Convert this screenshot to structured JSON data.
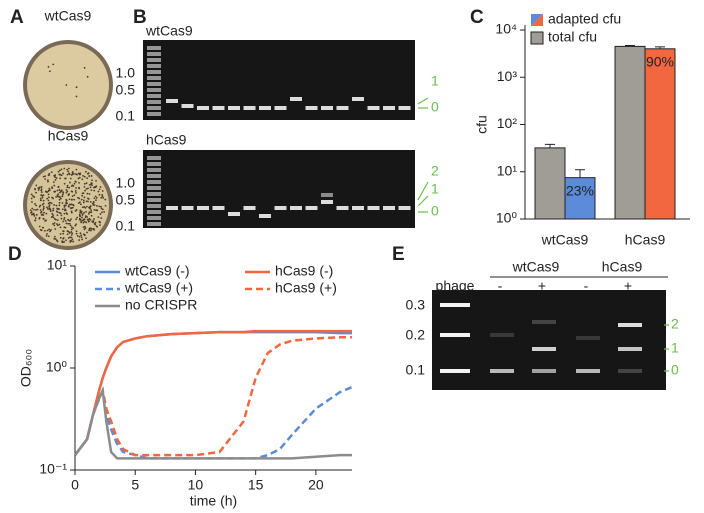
{
  "panel_labels": [
    "A",
    "B",
    "C",
    "D",
    "E"
  ],
  "plates": {
    "labels": [
      "wtCas9",
      "hCas9"
    ]
  },
  "gel_b": {
    "ladder_labels": [
      "1.0",
      "0.5",
      "0.1"
    ],
    "rows": [
      {
        "label": "wtCas9",
        "band_labels": [
          "1",
          "0"
        ]
      },
      {
        "label": "hCas9",
        "band_labels": [
          "2",
          "1",
          "0"
        ]
      }
    ]
  },
  "gel_e": {
    "groups": [
      "wtCas9",
      "hCas9"
    ],
    "lane_labels": [
      "phage",
      "-",
      "+",
      "-",
      "+"
    ],
    "ladder_labels": [
      "0.3",
      "0.2",
      "0.1"
    ],
    "band_labels": [
      "2",
      "1",
      "0"
    ]
  },
  "chart_data": [
    {
      "type": "bar",
      "y_label": "cfu",
      "log_y": true,
      "categories": [
        "wtCas9",
        "hCas9"
      ],
      "series": [
        {
          "name": "adapted cfu",
          "color": [
            "#5b8bd9",
            "#f26640"
          ],
          "values": [
            7.5,
            4000
          ],
          "errors": [
            3.5,
            400
          ],
          "annotations": [
            "23%",
            "90%"
          ]
        },
        {
          "name": "total cfu",
          "color": "#a09c96",
          "values": [
            32,
            4500
          ],
          "errors": [
            6,
            200
          ]
        }
      ],
      "ylim": [
        1,
        10000
      ],
      "yticks": [
        {
          "value": 1,
          "label": "10⁰"
        },
        {
          "value": 10,
          "label": "10¹"
        },
        {
          "value": 100,
          "label": "10²"
        },
        {
          "value": 1000,
          "label": "10³"
        },
        {
          "value": 10000,
          "label": "10⁴"
        }
      ]
    },
    {
      "type": "line",
      "x_label": "time (h)",
      "y_label": "OD₆₀₀",
      "log_y": true,
      "x": [
        0,
        1,
        1.5,
        2,
        2.3,
        2.6,
        3,
        3.5,
        4,
        5,
        6,
        8,
        10,
        12,
        14,
        15,
        16,
        17,
        18,
        20,
        22,
        23
      ],
      "series": [
        {
          "name": "wtCas9 (-)",
          "color": "#5b8bd9",
          "dashed": false,
          "values": [
            0.14,
            0.2,
            0.35,
            0.6,
            0.8,
            1.0,
            1.3,
            1.6,
            1.8,
            1.95,
            2.05,
            2.15,
            2.2,
            2.25,
            2.25,
            2.25,
            2.25,
            2.25,
            2.25,
            2.25,
            2.2,
            2.2
          ]
        },
        {
          "name": "hCas9 (-)",
          "color": "#f26640",
          "dashed": false,
          "values": [
            0.14,
            0.2,
            0.35,
            0.6,
            0.8,
            1.0,
            1.3,
            1.6,
            1.8,
            1.95,
            2.05,
            2.15,
            2.2,
            2.25,
            2.25,
            2.3,
            2.3,
            2.3,
            2.3,
            2.3,
            2.3,
            2.3
          ]
        },
        {
          "name": "wtCas9 (+)",
          "color": "#5b8bd9",
          "dashed": true,
          "values": [
            0.14,
            0.2,
            0.35,
            0.5,
            0.6,
            0.35,
            0.25,
            0.18,
            0.15,
            0.14,
            0.13,
            0.13,
            0.13,
            0.13,
            0.13,
            0.13,
            0.14,
            0.16,
            0.22,
            0.4,
            0.58,
            0.65
          ]
        },
        {
          "name": "hCas9 (+)",
          "color": "#f26640",
          "dashed": true,
          "values": [
            0.14,
            0.2,
            0.35,
            0.5,
            0.6,
            0.4,
            0.3,
            0.2,
            0.16,
            0.14,
            0.14,
            0.14,
            0.14,
            0.15,
            0.3,
            0.8,
            1.4,
            1.7,
            1.85,
            1.95,
            2.0,
            2.0
          ]
        },
        {
          "name": "no CRISPR",
          "color": "#8c8c8c",
          "dashed": false,
          "values": [
            0.14,
            0.2,
            0.35,
            0.5,
            0.6,
            0.3,
            0.15,
            0.13,
            0.13,
            0.13,
            0.13,
            0.13,
            0.13,
            0.13,
            0.13,
            0.13,
            0.13,
            0.13,
            0.13,
            0.135,
            0.14,
            0.14
          ]
        }
      ],
      "xlim": [
        0,
        23
      ],
      "xticks": [
        0,
        5,
        10,
        15,
        20
      ],
      "ylim": [
        0.1,
        10
      ],
      "yticks": [
        {
          "value": 0.1,
          "label": "10⁻¹"
        },
        {
          "value": 1,
          "label": "10⁰"
        },
        {
          "value": 10,
          "label": "10¹"
        }
      ]
    }
  ]
}
